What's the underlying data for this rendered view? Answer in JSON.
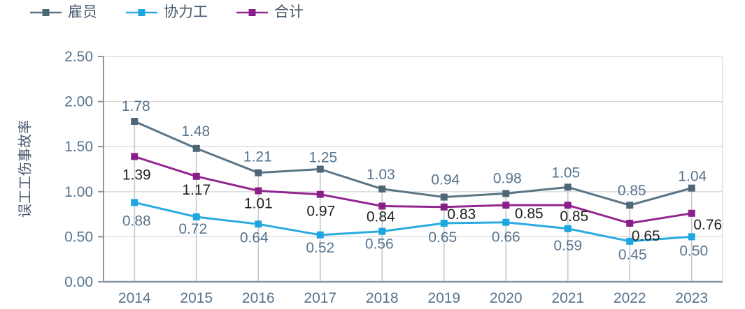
{
  "chart_data": {
    "type": "line",
    "ylabel": "误工工伤事故率",
    "categories": [
      "2014",
      "2015",
      "2016",
      "2017",
      "2018",
      "2019",
      "2020",
      "2021",
      "2022",
      "2023"
    ],
    "series": [
      {
        "key": "employees",
        "name": "雇员",
        "color": "#5b7585",
        "marker_color": "#4e6777",
        "values": [
          1.78,
          1.48,
          1.21,
          1.25,
          1.03,
          0.94,
          0.98,
          1.05,
          0.85,
          1.04
        ],
        "label_color": "#57748e",
        "label_dx": [
          2,
          -1,
          -1,
          4,
          -2,
          2,
          2,
          -3,
          3,
          1
        ],
        "label_dy": [
          -15,
          -18,
          -16,
          -10,
          -14,
          -18,
          -15,
          -14,
          -14,
          -10
        ]
      },
      {
        "key": "contractors",
        "name": "协力工",
        "color": "#29abe2",
        "marker_color": "#1ea6e0",
        "values": [
          0.88,
          0.72,
          0.64,
          0.52,
          0.56,
          0.65,
          0.66,
          0.59,
          0.45,
          0.5
        ],
        "label_color": "#57748e",
        "label_dx": [
          3,
          -5,
          -6,
          0,
          -4,
          -2,
          0,
          0,
          4,
          3
        ],
        "label_dy": [
          33,
          24,
          26,
          25,
          25,
          27,
          28,
          31,
          26,
          27
        ]
      },
      {
        "key": "total",
        "name": "合计",
        "color": "#93278f",
        "marker_color": "#892089",
        "values": [
          1.39,
          1.17,
          1.01,
          0.97,
          0.84,
          0.83,
          0.85,
          0.85,
          0.65,
          0.76
        ],
        "label_color": "#222222",
        "label_dx": [
          3,
          0,
          0,
          1,
          -2,
          25,
          33,
          9,
          23,
          23
        ],
        "label_dy": [
          33,
          26,
          25,
          31,
          22,
          17,
          19,
          23,
          25,
          23
        ]
      }
    ],
    "ylim": [
      0,
      2.5
    ],
    "yticks": [
      "0.00",
      "0.50",
      "1.00",
      "1.50",
      "2.00",
      "2.50"
    ],
    "grid": true,
    "drop_lines": true,
    "legend_position": "top-left",
    "colors": {
      "gridline": "#d9d9d9",
      "drop_line": "#c9cdd2",
      "axis": "#8a949e",
      "tick_label": "#57748e",
      "category_label": "#57748e",
      "background": "#ffffff"
    }
  }
}
